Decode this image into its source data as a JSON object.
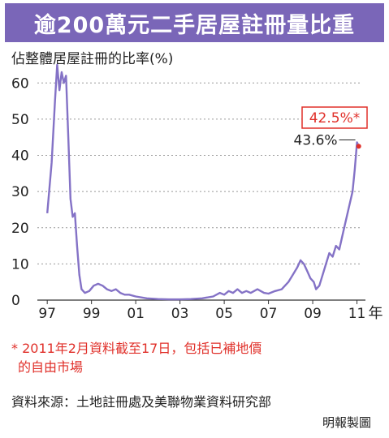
{
  "header": {
    "title": "逾200萬元二手居屋註冊量比重"
  },
  "chart_data": {
    "type": "line",
    "title": "逾200萬元二手居屋註冊量比重",
    "ylabel": "佔整體居屋註冊的比率(%)",
    "xlabel": "年",
    "ylim": [
      0,
      65
    ],
    "xlim": [
      1996.7,
      2011.2
    ],
    "yticks": [
      0,
      10,
      20,
      30,
      40,
      50,
      60
    ],
    "xticks": [
      {
        "value": 1997,
        "label": "97"
      },
      {
        "value": 1999,
        "label": "99"
      },
      {
        "value": 2001,
        "label": "01"
      },
      {
        "value": 2003,
        "label": "03"
      },
      {
        "value": 2005,
        "label": "05"
      },
      {
        "value": 2007,
        "label": "07"
      },
      {
        "value": 2009,
        "label": "09"
      },
      {
        "value": 2011,
        "label": "11"
      }
    ],
    "line_color": "#8472c6",
    "annotation_color": "#e0302a",
    "series": [
      {
        "points": [
          [
            1997.0,
            24
          ],
          [
            1997.2,
            38
          ],
          [
            1997.35,
            55
          ],
          [
            1997.45,
            65
          ],
          [
            1997.55,
            58
          ],
          [
            1997.65,
            63
          ],
          [
            1997.75,
            60
          ],
          [
            1997.85,
            62
          ],
          [
            1997.95,
            45
          ],
          [
            1998.05,
            28
          ],
          [
            1998.15,
            23
          ],
          [
            1998.25,
            24
          ],
          [
            1998.35,
            15
          ],
          [
            1998.45,
            7
          ],
          [
            1998.55,
            3
          ],
          [
            1998.7,
            2
          ],
          [
            1998.9,
            2.5
          ],
          [
            1999.1,
            4
          ],
          [
            1999.3,
            4.5
          ],
          [
            1999.5,
            4
          ],
          [
            1999.7,
            3
          ],
          [
            1999.9,
            2.5
          ],
          [
            2000.1,
            3
          ],
          [
            2000.3,
            2
          ],
          [
            2000.5,
            1.5
          ],
          [
            2000.7,
            1.5
          ],
          [
            2001.0,
            1
          ],
          [
            2001.5,
            0.5
          ],
          [
            2002.0,
            0.3
          ],
          [
            2002.5,
            0.2
          ],
          [
            2003.0,
            0.2
          ],
          [
            2003.5,
            0.3
          ],
          [
            2004.0,
            0.5
          ],
          [
            2004.5,
            1
          ],
          [
            2004.8,
            2
          ],
          [
            2005.0,
            1.5
          ],
          [
            2005.2,
            2.5
          ],
          [
            2005.4,
            2
          ],
          [
            2005.6,
            3
          ],
          [
            2005.8,
            2
          ],
          [
            2006.0,
            2.5
          ],
          [
            2006.2,
            2
          ],
          [
            2006.5,
            3
          ],
          [
            2006.8,
            2
          ],
          [
            2007.0,
            1.8
          ],
          [
            2007.3,
            2.5
          ],
          [
            2007.6,
            3
          ],
          [
            2007.9,
            5
          ],
          [
            2008.1,
            7
          ],
          [
            2008.3,
            9
          ],
          [
            2008.45,
            11
          ],
          [
            2008.6,
            10
          ],
          [
            2008.75,
            8
          ],
          [
            2008.9,
            6
          ],
          [
            2009.05,
            5
          ],
          [
            2009.15,
            3
          ],
          [
            2009.3,
            4
          ],
          [
            2009.45,
            7
          ],
          [
            2009.6,
            10
          ],
          [
            2009.75,
            13
          ],
          [
            2009.9,
            12
          ],
          [
            2010.05,
            15
          ],
          [
            2010.2,
            14
          ],
          [
            2010.35,
            18
          ],
          [
            2010.5,
            22
          ],
          [
            2010.65,
            26
          ],
          [
            2010.8,
            30
          ],
          [
            2010.9,
            36
          ],
          [
            2011.0,
            43.6
          ],
          [
            2011.08,
            42.5
          ]
        ]
      }
    ],
    "annotations": [
      {
        "text": "43.6%",
        "x": 2011.0,
        "y": 43.6
      },
      {
        "text": "42.5%*",
        "x": 2011.08,
        "y": 42.5
      }
    ]
  },
  "footnote": {
    "lines": [
      "* 2011年2月資料截至17日，包括已補地價",
      "的自由市場"
    ]
  },
  "source": {
    "text": "資料來源：土地註冊處及美聯物業資料研究部"
  },
  "credit": {
    "text": "明報製圖"
  }
}
